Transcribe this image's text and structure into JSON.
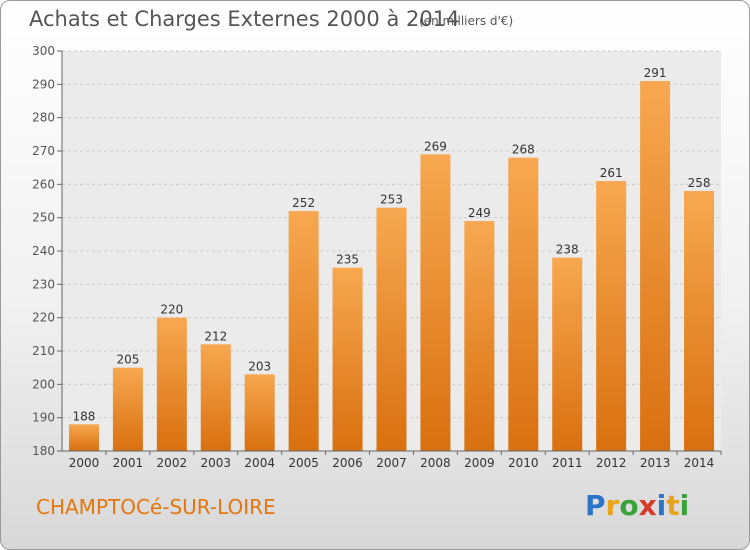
{
  "chart_data": {
    "type": "bar",
    "title": "Achats et Charges Externes 2000 à 2014",
    "subtitle": "(en milliers d'€)",
    "categories": [
      "2000",
      "2001",
      "2002",
      "2003",
      "2004",
      "2005",
      "2006",
      "2007",
      "2008",
      "2009",
      "2010",
      "2011",
      "2012",
      "2013",
      "2014"
    ],
    "values": [
      188,
      205,
      220,
      212,
      203,
      252,
      235,
      253,
      269,
      249,
      268,
      238,
      261,
      291,
      258
    ],
    "ylim": [
      180,
      300
    ],
    "yticks": [
      180,
      190,
      200,
      210,
      220,
      230,
      240,
      250,
      260,
      270,
      280,
      290,
      300
    ],
    "grid": true,
    "bar_color_top": "#f7a850",
    "bar_color_bottom": "#d9700f"
  },
  "place_name": "CHAMPTOCé-SUR-LOIRE",
  "logo": {
    "letters": [
      "P",
      "r",
      "o",
      "x",
      "i",
      "t",
      "i"
    ],
    "colors": [
      "#2b74c9",
      "#e8a31a",
      "#3aa23a",
      "#d63a2a",
      "#2b74c9",
      "#e8a31a",
      "#3aa23a"
    ]
  }
}
